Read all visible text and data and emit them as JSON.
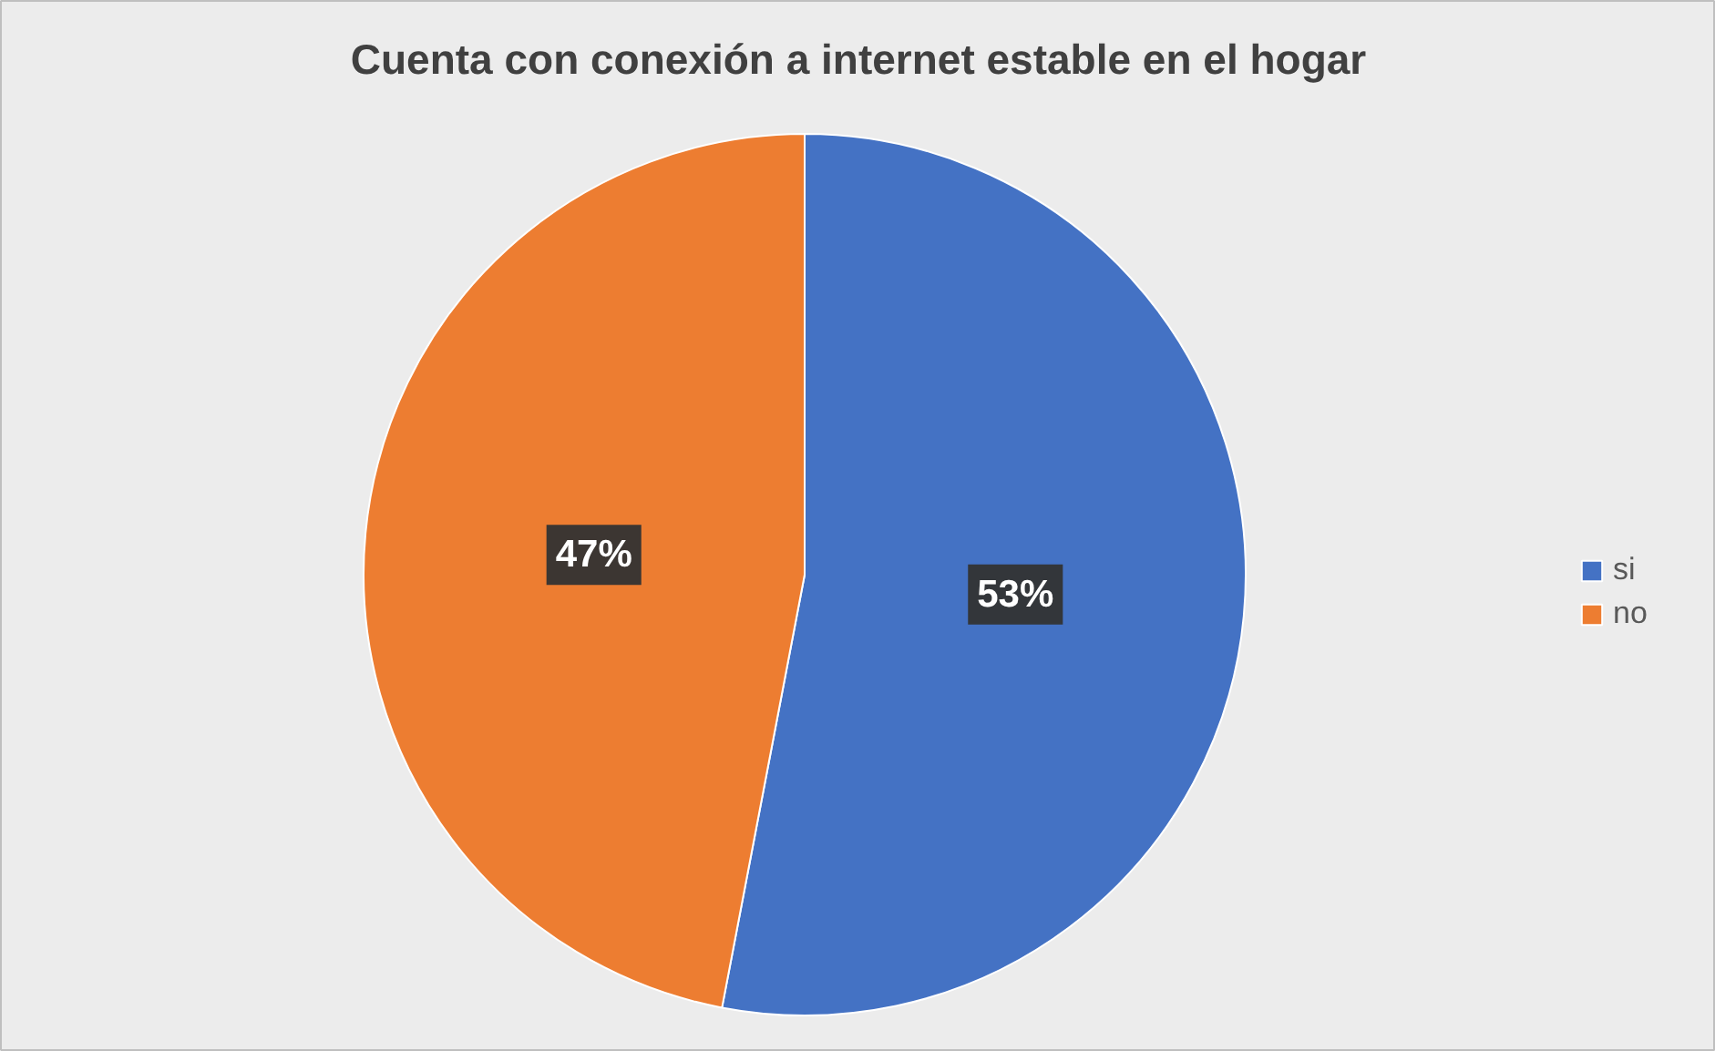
{
  "chart_data": {
    "type": "pie",
    "title": "Cuenta con conexión a internet estable en el hogar",
    "categories": [
      "si",
      "no"
    ],
    "values": [
      53,
      47
    ],
    "colors": [
      "#4472c4",
      "#ed7d31"
    ],
    "value_labels": [
      "53%",
      "47%"
    ],
    "legend": "right"
  }
}
